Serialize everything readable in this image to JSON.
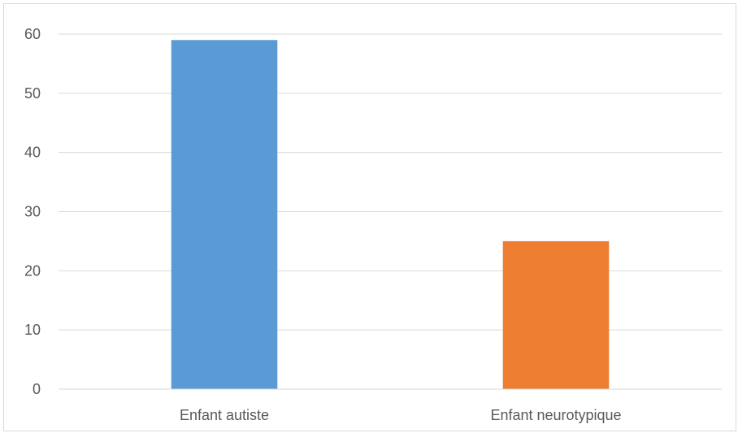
{
  "chart_data": {
    "type": "bar",
    "categories": [
      "Enfant autiste",
      "Enfant neurotypique"
    ],
    "values": [
      59,
      25
    ],
    "colors": [
      "#5B9BD5",
      "#ED7D31"
    ],
    "ylim": [
      0,
      60
    ],
    "yticks": [
      0,
      10,
      20,
      30,
      40,
      50,
      60
    ],
    "ytick_labels": [
      "0",
      "10",
      "20",
      "30",
      "40",
      "50",
      "60"
    ],
    "grid": true,
    "gridline_color": "#d9d9d9"
  }
}
